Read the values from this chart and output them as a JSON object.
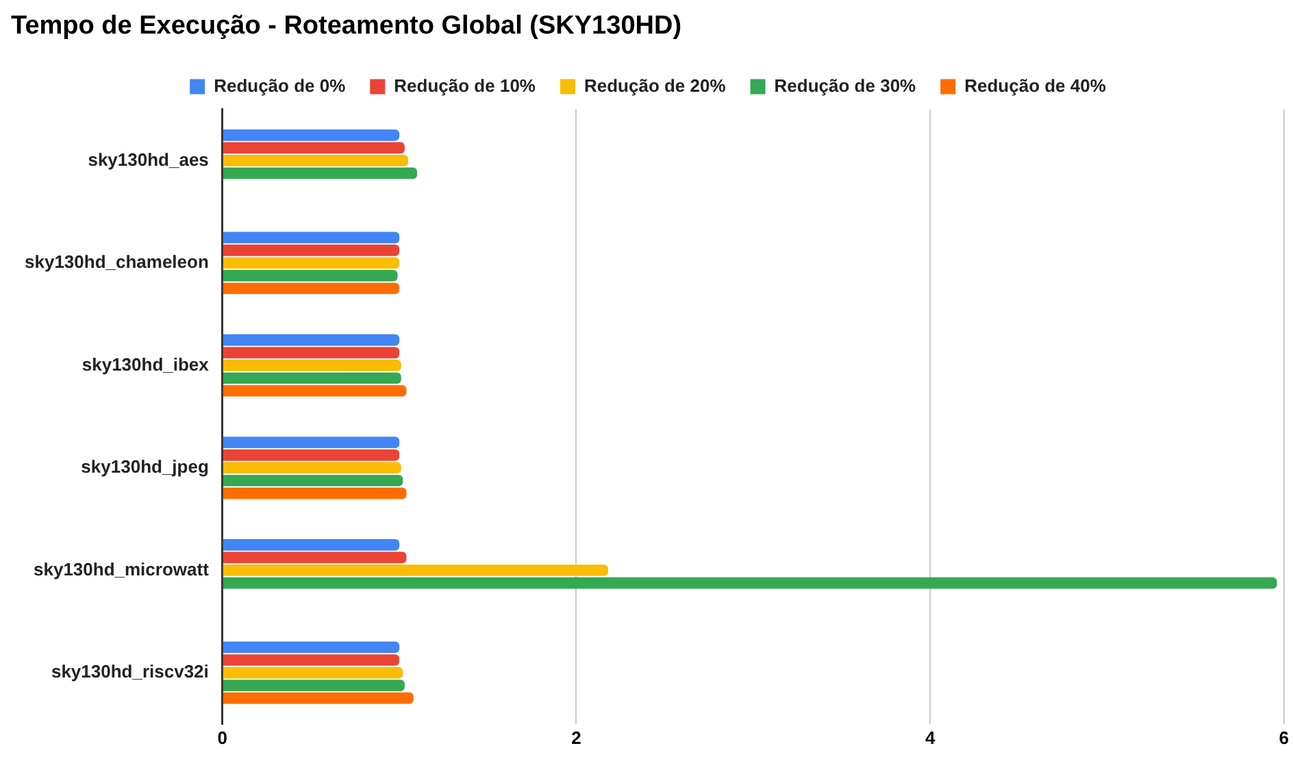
{
  "chart_data": {
    "type": "bar",
    "orientation": "horizontal",
    "title": "Tempo de Execução - Roteamento Global (SKY130HD)",
    "categories": [
      "sky130hd_aes",
      "sky130hd_chameleon",
      "sky130hd_ibex",
      "sky130hd_jpeg",
      "sky130hd_microwatt",
      "sky130hd_riscv32i"
    ],
    "series": [
      {
        "name": "Redução de 0%",
        "color": "#4285f4",
        "values": [
          1.0,
          1.0,
          1.0,
          1.0,
          1.0,
          1.0
        ]
      },
      {
        "name": "Redução de 10%",
        "color": "#ea4335",
        "values": [
          1.03,
          1.0,
          1.0,
          1.0,
          1.04,
          1.0
        ]
      },
      {
        "name": "Redução de 20%",
        "color": "#fbbc04",
        "values": [
          1.05,
          1.0,
          1.01,
          1.01,
          2.18,
          1.02
        ]
      },
      {
        "name": "Redução de 30%",
        "color": "#34a853",
        "values": [
          1.1,
          0.99,
          1.01,
          1.02,
          5.96,
          1.03
        ]
      },
      {
        "name": "Redução de 40%",
        "color": "#ff6d01",
        "values": [
          null,
          1.0,
          1.04,
          1.04,
          null,
          1.08
        ]
      }
    ],
    "xlim": [
      0,
      6
    ],
    "xticks": [
      0,
      2,
      4,
      6
    ],
    "grid": "x",
    "legend": "top"
  }
}
